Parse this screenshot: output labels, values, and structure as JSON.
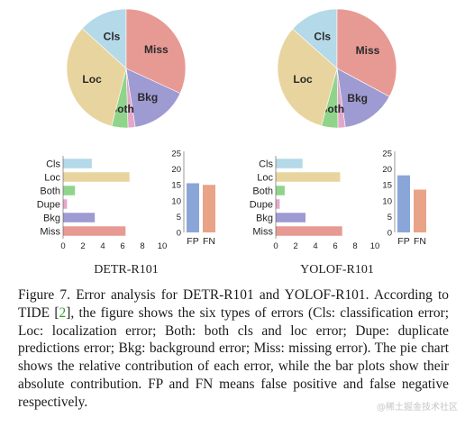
{
  "chart_data": [
    {
      "panel": "DETR-R101",
      "title": "DETR-R101",
      "pie": {
        "type": "pie",
        "labels": [
          "Cls",
          "Miss",
          "Bkg",
          "Dupe",
          "Both",
          "Loc"
        ],
        "values": [
          2.7,
          6.5,
          3.2,
          0.4,
          0.9,
          6.7
        ]
      },
      "bar": {
        "type": "bar",
        "orientation": "horizontal",
        "categories": [
          "Cls",
          "Loc",
          "Both",
          "Dupe",
          "Bkg",
          "Miss"
        ],
        "values": [
          2.9,
          6.7,
          1.2,
          0.4,
          3.2,
          6.3
        ],
        "xlim": [
          0,
          10
        ],
        "xticks": [
          0,
          2,
          4,
          6,
          8,
          10
        ]
      },
      "fpfn": {
        "type": "bar",
        "categories": [
          "FP",
          "FN"
        ],
        "values": [
          15.5,
          15.0
        ],
        "ylim": [
          0,
          25
        ],
        "yticks": [
          0,
          5,
          10,
          15,
          20,
          25
        ]
      }
    },
    {
      "panel": "YOLOF-R101",
      "title": "YOLOF-R101",
      "pie": {
        "type": "pie",
        "labels": [
          "Cls",
          "Miss",
          "Bkg",
          "Dupe",
          "Both",
          "Loc"
        ],
        "values": [
          2.7,
          6.6,
          3.0,
          0.4,
          0.9,
          6.5
        ]
      },
      "bar": {
        "type": "bar",
        "orientation": "horizontal",
        "categories": [
          "Cls",
          "Loc",
          "Both",
          "Dupe",
          "Bkg",
          "Miss"
        ],
        "values": [
          2.7,
          6.5,
          0.9,
          0.4,
          3.0,
          6.7
        ],
        "xlim": [
          0,
          10
        ],
        "xticks": [
          0,
          2,
          4,
          6,
          8,
          10
        ]
      },
      "fpfn": {
        "type": "bar",
        "categories": [
          "FP",
          "FN"
        ],
        "values": [
          18.0,
          13.5
        ],
        "ylim": [
          0,
          25
        ],
        "yticks": [
          0,
          5,
          10,
          15,
          20,
          25
        ]
      }
    }
  ],
  "colors": {
    "Cls": "#b4d9e8",
    "Loc": "#e8d49e",
    "Both": "#8fd48a",
    "Dupe": "#e3a8c9",
    "Bkg": "#9e9ad2",
    "Miss": "#e79a94",
    "FP": "#8aa6d8",
    "FN": "#e9a387"
  },
  "caption": {
    "part1": "Figure 7. Error analysis for DETR-R101 and YOLOF-R101. According to TIDE [",
    "ref": "2",
    "part2": "], the figure shows the six types of errors (Cls: classification error; Loc: localization error; Both: both cls and loc error; Dupe: duplicate predictions error; Bkg: background error; Miss: missing error). The pie chart shows the relative contribution of each error, while the bar plots show their absolute contribution. FP and FN means false positive and false negative respectively."
  },
  "watermark": "@稀土掘金技术社区"
}
